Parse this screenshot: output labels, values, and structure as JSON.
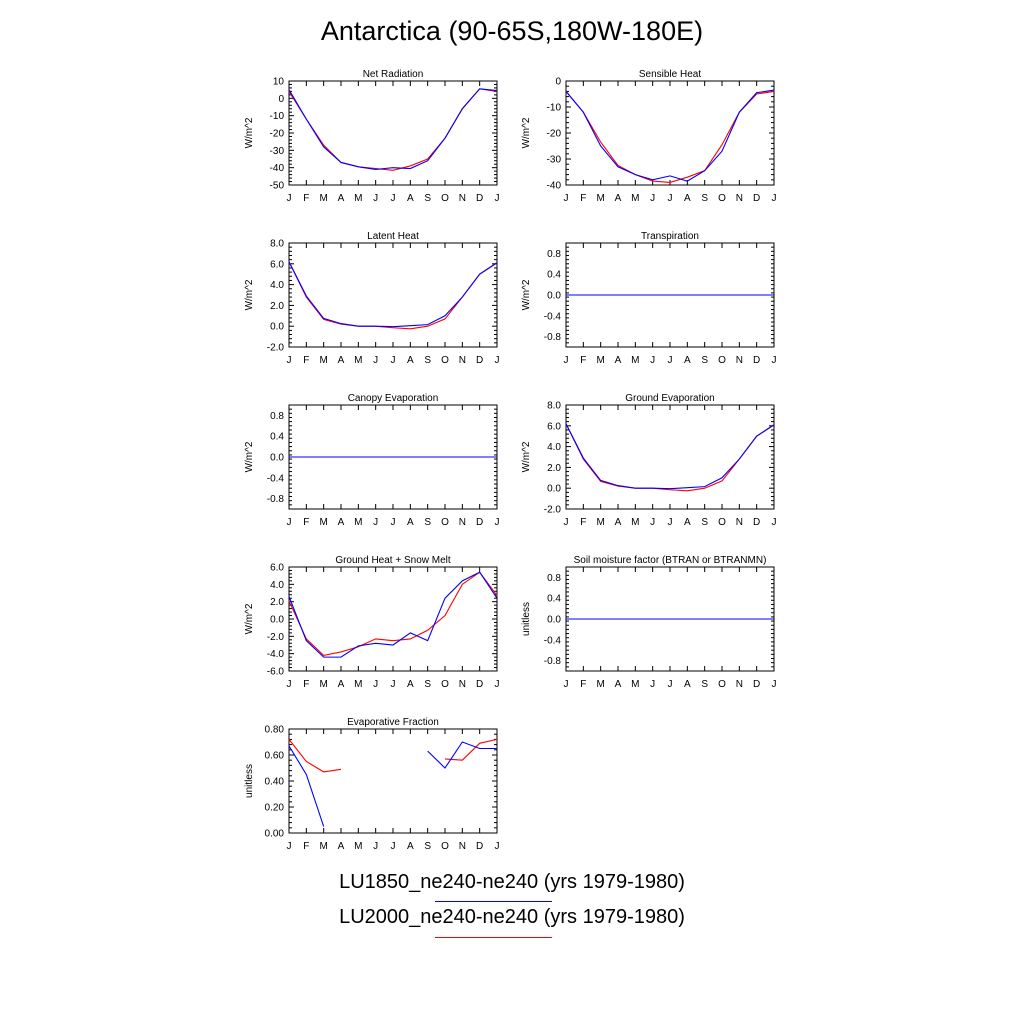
{
  "title": "Antarctica (90-65S,180W-180E)",
  "colors": {
    "LU1850": "#0000ff",
    "LU2000": "#ff0000"
  },
  "legend": [
    {
      "label": "LU1850_ne240-ne240 (yrs 1979-1980)",
      "color": "#0000ff"
    },
    {
      "label": "LU2000_ne240-ne240 (yrs 1979-1980)",
      "color": "#ff0000"
    }
  ],
  "chart_data": [
    {
      "type": "line",
      "title": "Net Radiation",
      "ylabel": "W/m^2",
      "categories": [
        "J",
        "F",
        "M",
        "A",
        "M",
        "J",
        "J",
        "A",
        "S",
        "O",
        "N",
        "D",
        "J"
      ],
      "ylim": [
        -50,
        10
      ],
      "yticks": [
        10,
        0,
        -10,
        -20,
        -30,
        -40,
        -50
      ],
      "ytick_labels": [
        "10",
        "0",
        "-10",
        "-20",
        "-30",
        "-40",
        "-50"
      ],
      "series": [
        {
          "values": [
            5,
            -12,
            -28,
            -37,
            -39.5,
            -41,
            -40,
            -40.5,
            -36,
            -23,
            -6,
            5.5,
            4.5
          ]
        },
        {
          "values": [
            4,
            -12,
            -27,
            -37,
            -39.5,
            -40.5,
            -41.5,
            -39,
            -35,
            -23,
            -6,
            5.5,
            4
          ]
        }
      ]
    },
    {
      "type": "line",
      "title": "Sensible Heat",
      "ylabel": "W/m^2",
      "categories": [
        "J",
        "F",
        "M",
        "A",
        "M",
        "J",
        "J",
        "A",
        "S",
        "O",
        "N",
        "D",
        "J"
      ],
      "ylim": [
        -40,
        0
      ],
      "yticks": [
        0,
        -10,
        -20,
        -30,
        -40
      ],
      "ytick_labels": [
        "0",
        "-10",
        "-20",
        "-30",
        "-40"
      ],
      "series": [
        {
          "values": [
            -4,
            -12,
            -25,
            -33,
            -36,
            -38,
            -36.5,
            -38.5,
            -34.5,
            -27,
            -12,
            -4.5,
            -3.5
          ]
        },
        {
          "values": [
            -4,
            -12,
            -23.5,
            -32.5,
            -36,
            -38.5,
            -39,
            -37,
            -34.5,
            -24.5,
            -12,
            -5,
            -4
          ]
        }
      ]
    },
    {
      "type": "line",
      "title": "Latent Heat",
      "ylabel": "W/m^2",
      "categories": [
        "J",
        "F",
        "M",
        "A",
        "M",
        "J",
        "J",
        "A",
        "S",
        "O",
        "N",
        "D",
        "J"
      ],
      "ylim": [
        -2.0,
        8.0
      ],
      "yticks": [
        8.0,
        6.0,
        4.0,
        2.0,
        0.0,
        -2.0
      ],
      "ytick_labels": [
        "8.0",
        "6.0",
        "4.0",
        "2.0",
        "0.0",
        "-2.0"
      ],
      "series": [
        {
          "values": [
            6.2,
            2.9,
            0.75,
            0.25,
            0.0,
            0.0,
            -0.05,
            0.05,
            0.15,
            1.0,
            2.8,
            5.0,
            6.1
          ]
        },
        {
          "values": [
            6.2,
            2.8,
            0.65,
            0.2,
            0.0,
            0.0,
            -0.15,
            -0.25,
            0.0,
            0.7,
            2.8,
            5.0,
            6.1
          ]
        }
      ]
    },
    {
      "type": "line",
      "title": "Transpiration",
      "ylabel": "W/m^2",
      "categories": [
        "J",
        "F",
        "M",
        "A",
        "M",
        "J",
        "J",
        "A",
        "S",
        "O",
        "N",
        "D",
        "J"
      ],
      "ylim": [
        -1.0,
        1.0
      ],
      "yticks": [
        0.8,
        0.4,
        0.0,
        -0.4,
        -0.8
      ],
      "ytick_labels": [
        "0.8",
        "0.4",
        "0.0",
        "-0.4",
        "-0.8"
      ],
      "series": [
        {
          "values": [
            0,
            0,
            0,
            0,
            0,
            0,
            0,
            0,
            0,
            0,
            0,
            0,
            0
          ]
        },
        {
          "values": [
            0,
            0,
            0,
            0,
            0,
            0,
            0,
            0,
            0,
            0,
            0,
            0,
            0
          ]
        }
      ]
    },
    {
      "type": "line",
      "title": "Canopy Evaporation",
      "ylabel": "W/m^2",
      "categories": [
        "J",
        "F",
        "M",
        "A",
        "M",
        "J",
        "J",
        "A",
        "S",
        "O",
        "N",
        "D",
        "J"
      ],
      "ylim": [
        -1.0,
        1.0
      ],
      "yticks": [
        0.8,
        0.4,
        0.0,
        -0.4,
        -0.8
      ],
      "ytick_labels": [
        "0.8",
        "0.4",
        "0.0",
        "-0.4",
        "-0.8"
      ],
      "series": [
        {
          "values": [
            0,
            0,
            0,
            0,
            0,
            0,
            0,
            0,
            0,
            0,
            0,
            0,
            0
          ]
        },
        {
          "values": [
            0,
            0,
            0,
            0,
            0,
            0,
            0,
            0,
            0,
            0,
            0,
            0,
            0
          ]
        }
      ]
    },
    {
      "type": "line",
      "title": "Ground Evaporation",
      "ylabel": "W/m^2",
      "categories": [
        "J",
        "F",
        "M",
        "A",
        "M",
        "J",
        "J",
        "A",
        "S",
        "O",
        "N",
        "D",
        "J"
      ],
      "ylim": [
        -2.0,
        8.0
      ],
      "yticks": [
        8.0,
        6.0,
        4.0,
        2.0,
        0.0,
        -2.0
      ],
      "ytick_labels": [
        "8.0",
        "6.0",
        "4.0",
        "2.0",
        "0.0",
        "-2.0"
      ],
      "series": [
        {
          "values": [
            6.2,
            2.9,
            0.75,
            0.25,
            0.0,
            0.0,
            -0.05,
            0.05,
            0.15,
            1.0,
            2.8,
            5.0,
            6.1
          ]
        },
        {
          "values": [
            6.2,
            2.8,
            0.65,
            0.2,
            0.0,
            0.0,
            -0.15,
            -0.25,
            0.0,
            0.7,
            2.8,
            5.0,
            6.1
          ]
        }
      ]
    },
    {
      "type": "line",
      "title": "Ground Heat + Snow Melt",
      "ylabel": "W/m^2",
      "categories": [
        "J",
        "F",
        "M",
        "A",
        "M",
        "J",
        "J",
        "A",
        "S",
        "O",
        "N",
        "D",
        "J"
      ],
      "ylim": [
        -6.0,
        6.0
      ],
      "yticks": [
        6.0,
        4.0,
        2.0,
        0.0,
        -2.0,
        -4.0,
        -6.0
      ],
      "ytick_labels": [
        "6.0",
        "4.0",
        "2.0",
        "0.0",
        "-2.0",
        "-4.0",
        "-6.0"
      ],
      "series": [
        {
          "values": [
            2.6,
            -2.5,
            -4.4,
            -4.4,
            -3.1,
            -2.8,
            -3.0,
            -1.6,
            -2.5,
            2.4,
            4.4,
            5.4,
            2.4
          ]
        },
        {
          "values": [
            2.1,
            -2.3,
            -4.2,
            -3.8,
            -3.2,
            -2.3,
            -2.5,
            -2.3,
            -1.3,
            0.4,
            4.0,
            5.4,
            2.7
          ]
        }
      ]
    },
    {
      "type": "line",
      "title": "Soil moisture factor (BTRAN or BTRANMN)",
      "ylabel": "unitless",
      "categories": [
        "J",
        "F",
        "M",
        "A",
        "M",
        "J",
        "J",
        "A",
        "S",
        "O",
        "N",
        "D",
        "J"
      ],
      "ylim": [
        -1.0,
        1.0
      ],
      "yticks": [
        0.8,
        0.4,
        0.0,
        -0.4,
        -0.8
      ],
      "ytick_labels": [
        "0.8",
        "0.4",
        "0.0",
        "-0.4",
        "-0.8"
      ],
      "series": [
        {
          "values": [
            0,
            0,
            0,
            0,
            0,
            0,
            0,
            0,
            0,
            0,
            0,
            0,
            0
          ]
        },
        {
          "values": [
            0,
            0,
            0,
            0,
            0,
            0,
            0,
            0,
            0,
            0,
            0,
            0,
            0
          ]
        }
      ]
    },
    {
      "type": "line",
      "title": "Evaporative Fraction",
      "ylabel": "unitless",
      "categories": [
        "J",
        "F",
        "M",
        "A",
        "M",
        "J",
        "J",
        "A",
        "S",
        "O",
        "N",
        "D",
        "J"
      ],
      "ylim": [
        0.0,
        0.8
      ],
      "yticks": [
        0.8,
        0.6,
        0.4,
        0.2,
        0.0
      ],
      "ytick_labels": [
        "0.80",
        "0.60",
        "0.40",
        "0.20",
        "0.00"
      ],
      "series": [
        {
          "values": [
            0.67,
            0.45,
            0.05,
            null,
            null,
            null,
            null,
            null,
            0.63,
            0.5,
            0.7,
            0.65,
            0.65
          ]
        },
        {
          "values": [
            0.72,
            0.55,
            0.47,
            0.49,
            null,
            null,
            null,
            null,
            null,
            0.57,
            0.56,
            0.69,
            0.72
          ]
        }
      ]
    }
  ]
}
